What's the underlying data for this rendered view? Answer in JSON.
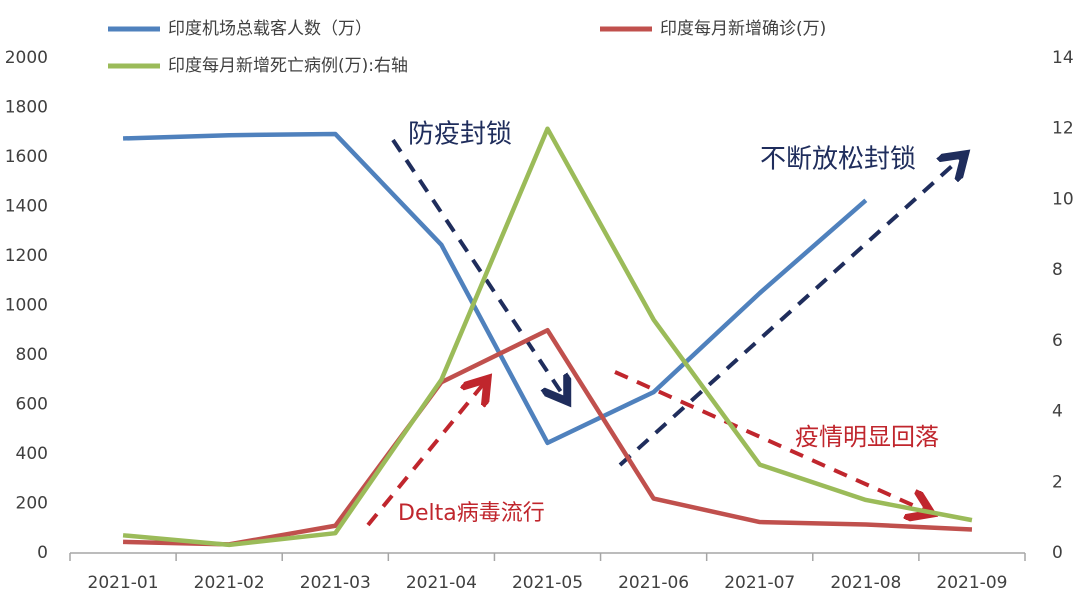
{
  "chart_data": {
    "type": "line",
    "categories": [
      "2021-01",
      "2021-02",
      "2021-03",
      "2021-04",
      "2021-05",
      "2021-06",
      "2021-07",
      "2021-08",
      "2021-09"
    ],
    "series": [
      {
        "name": "印度机场总载客人数（万）",
        "color": "#4f81bd",
        "values": [
          1675,
          1688,
          1693,
          1245,
          445,
          650,
          1050,
          1425,
          null
        ]
      },
      {
        "name": "印度每月新增确诊(万)",
        "color": "#c0504d",
        "values": [
          45,
          35,
          110,
          690,
          900,
          220,
          125,
          115,
          95
        ]
      },
      {
        "name": "印度每月新增死亡病例(万):右轴",
        "color": "#9bbb59",
        "axis": "y2",
        "values": [
          0.5,
          0.23,
          0.56,
          4.9,
          12.0,
          6.6,
          2.5,
          1.5,
          0.93
        ]
      }
    ],
    "ylim": [
      0,
      2000
    ],
    "yticks": [
      0,
      200,
      400,
      600,
      800,
      1000,
      1200,
      1400,
      1600,
      1800,
      2000
    ],
    "y2lim": [
      0,
      14
    ],
    "y2ticks": [
      0,
      2,
      4,
      6,
      8,
      10,
      12,
      14
    ],
    "annotations": [
      {
        "text": "防疫封锁",
        "color": "#1f2d5c"
      },
      {
        "text": "不断放松封锁",
        "color": "#1f2d5c"
      },
      {
        "text": "疫情明显回落",
        "color": "#c0262d"
      },
      {
        "text": "Delta病毒流行",
        "color": "#c0262d"
      }
    ]
  }
}
